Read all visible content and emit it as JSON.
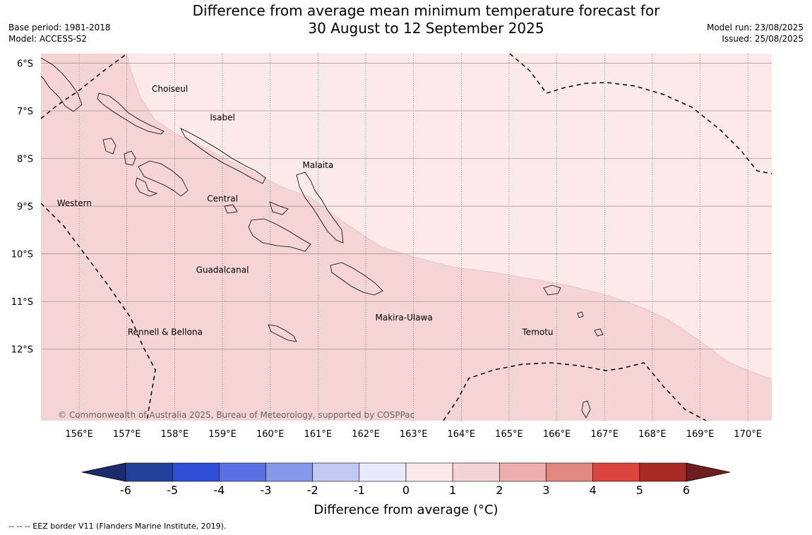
{
  "title": {
    "line1": "Difference from average mean minimum temperature forecast for",
    "line2": "30 August to 12 September 2025"
  },
  "meta_left": {
    "base_period": "Base period: 1981-2018",
    "model": "Model: ACCESS-S2"
  },
  "meta_right": {
    "model_run": "Model run: 23/08/2025",
    "issued": "Issued: 25/08/2025"
  },
  "map": {
    "lat_labels": [
      "6°S",
      "7°S",
      "8°S",
      "9°S",
      "10°S",
      "11°S",
      "12°S"
    ],
    "lon_labels": [
      "156°E",
      "157°E",
      "158°E",
      "159°E",
      "160°E",
      "161°E",
      "162°E",
      "163°E",
      "164°E",
      "165°E",
      "166°E",
      "167°E",
      "168°E",
      "169°E",
      "170°E"
    ],
    "lat_values": [
      -6,
      -7,
      -8,
      -9,
      -10,
      -11,
      -12
    ],
    "lon_values": [
      156,
      157,
      158,
      159,
      160,
      161,
      162,
      163,
      164,
      165,
      166,
      167,
      168,
      169,
      170
    ],
    "lon_range": [
      155.2,
      170.5
    ],
    "lat_range": [
      -13.5,
      -5.8
    ],
    "regions": [
      {
        "name": "Choiseul",
        "lon": 157.9,
        "lat": -6.6
      },
      {
        "name": "Isabel",
        "lon": 159.0,
        "lat": -7.2
      },
      {
        "name": "Malaita",
        "lon": 161.0,
        "lat": -8.2
      },
      {
        "name": "Western",
        "lon": 155.9,
        "lat": -9.0
      },
      {
        "name": "Central",
        "lon": 159.0,
        "lat": -8.9
      },
      {
        "name": "Guadalcanal",
        "lon": 159.0,
        "lat": -10.4
      },
      {
        "name": "Makira-Ulawa",
        "lon": 162.8,
        "lat": -11.4
      },
      {
        "name": "Rennell & Bellona",
        "lon": 157.8,
        "lat": -11.7
      },
      {
        "name": "Temotu",
        "lon": 165.6,
        "lat": -11.7
      }
    ],
    "copyright": "© Commonwealth of Australia 2025, Bureau of Meteorology, supported by COSPPac",
    "colors": {
      "anomaly_0_1": "#fbeae9",
      "anomaly_1_2": "#f4d4d4"
    }
  },
  "colorbar": {
    "title": "Difference from average (°C)",
    "ticks": [
      "-6",
      "-5",
      "-4",
      "-3",
      "-2",
      "-1",
      "0",
      "1",
      "2",
      "3",
      "4",
      "5",
      "6"
    ],
    "colors": [
      "#23409b",
      "#2e4fd8",
      "#5872e4",
      "#8598eb",
      "#c0c9f3",
      "#e7ebfb",
      "#fbeae9",
      "#f4d4d4",
      "#edaeae",
      "#e38781",
      "#da463e",
      "#a82a24"
    ],
    "extend_low_color": "#1c2a6e",
    "extend_high_color": "#6e1f1d"
  },
  "footer": "--  --  -- EEZ border V11 (Flanders Marine Institute, 2019)."
}
